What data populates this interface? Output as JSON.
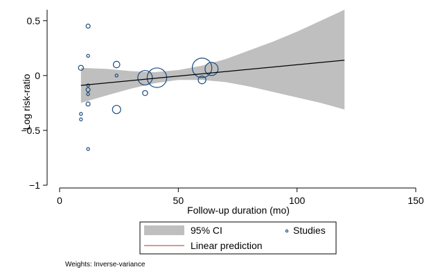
{
  "chart_data": {
    "type": "scatter",
    "xlabel": "Follow-up duration (mo)",
    "ylabel": "Log risk-ratio",
    "xlim": [
      0,
      150
    ],
    "ylim": [
      -1.0,
      0.6
    ],
    "xticks": [
      0,
      50,
      100,
      150
    ],
    "yticks": [
      -1,
      -0.5,
      0,
      0.5
    ],
    "xtick_labels": [
      "0",
      "50",
      "100",
      "150"
    ],
    "ytick_labels": [
      "−1",
      "−0.5",
      "0",
      "0.5"
    ],
    "grid": false,
    "legend_position": "bottom",
    "legend": {
      "ci_label": "95% CI",
      "studies_label": "Studies",
      "line_label": "Linear prediction"
    },
    "note": "Weights: Inverse-variance",
    "colors": {
      "ci_band": "#bfbfbf",
      "studies": "#1a4a7a",
      "fit_line": "#000000",
      "legend_line": "#b03030"
    },
    "fit_line": {
      "x": [
        9,
        120
      ],
      "y": [
        -0.09,
        0.14
      ]
    },
    "ci_band": {
      "x": [
        9,
        20,
        30,
        40,
        50,
        60,
        70,
        80,
        90,
        100,
        110,
        120
      ],
      "lower": [
        -0.25,
        -0.18,
        -0.12,
        -0.07,
        -0.04,
        -0.04,
        -0.06,
        -0.1,
        -0.15,
        -0.2,
        -0.25,
        -0.31
      ],
      "upper": [
        0.07,
        0.06,
        0.04,
        0.03,
        0.05,
        0.09,
        0.15,
        0.23,
        0.31,
        0.4,
        0.5,
        0.6
      ]
    },
    "series": [
      {
        "points": [
          {
            "x": 9,
            "y": 0.07,
            "w": 3
          },
          {
            "x": 9,
            "y": -0.35,
            "w": 1
          },
          {
            "x": 9,
            "y": -0.4,
            "w": 1
          },
          {
            "x": 12,
            "y": 0.45,
            "w": 2
          },
          {
            "x": 12,
            "y": 0.18,
            "w": 1
          },
          {
            "x": 12,
            "y": -0.09,
            "w": 1
          },
          {
            "x": 12,
            "y": -0.13,
            "w": 2
          },
          {
            "x": 12,
            "y": -0.17,
            "w": 1
          },
          {
            "x": 12,
            "y": -0.26,
            "w": 2
          },
          {
            "x": 12,
            "y": -0.67,
            "w": 1
          },
          {
            "x": 24,
            "y": 0.1,
            "w": 5
          },
          {
            "x": 24,
            "y": 0.0,
            "w": 1
          },
          {
            "x": 24,
            "y": -0.31,
            "w": 8
          },
          {
            "x": 36,
            "y": -0.02,
            "w": 25
          },
          {
            "x": 36,
            "y": -0.16,
            "w": 3
          },
          {
            "x": 41,
            "y": -0.02,
            "w": 45
          },
          {
            "x": 60,
            "y": 0.07,
            "w": 45
          },
          {
            "x": 60,
            "y": -0.04,
            "w": 7
          },
          {
            "x": 64,
            "y": 0.06,
            "w": 20
          }
        ]
      }
    ]
  }
}
